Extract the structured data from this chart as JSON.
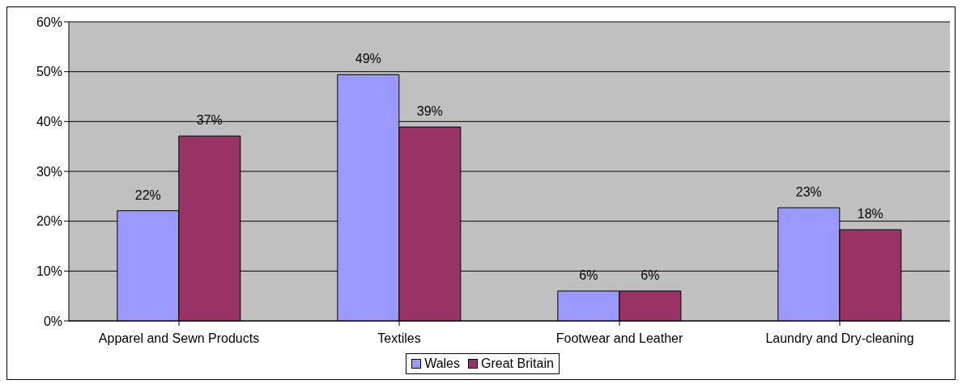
{
  "chart_data": {
    "type": "bar",
    "categories": [
      "Apparel and Sewn Products",
      "Textiles",
      "Footwear and Leather",
      "Laundry and Dry-cleaning"
    ],
    "series": [
      {
        "name": "Wales",
        "color": "#9999ff",
        "values": [
          22.1,
          49.4,
          6.0,
          22.7
        ],
        "value_labels": [
          "22%",
          "49%",
          "6%",
          "23%"
        ]
      },
      {
        "name": "Great Britain",
        "color": "#993366",
        "values": [
          37.1,
          38.9,
          6.0,
          18.3
        ],
        "value_labels": [
          "37%",
          "39%",
          "6%",
          "18%"
        ]
      }
    ],
    "ylim": [
      0,
      60
    ],
    "yticks": [
      {
        "value": 0,
        "label": "0%"
      },
      {
        "value": 10,
        "label": "10%"
      },
      {
        "value": 20,
        "label": "20%"
      },
      {
        "value": 30,
        "label": "30%"
      },
      {
        "value": 40,
        "label": "40%"
      },
      {
        "value": 50,
        "label": "50%"
      },
      {
        "value": 60,
        "label": "60%"
      }
    ],
    "grid": "y",
    "legend": "bottom"
  }
}
